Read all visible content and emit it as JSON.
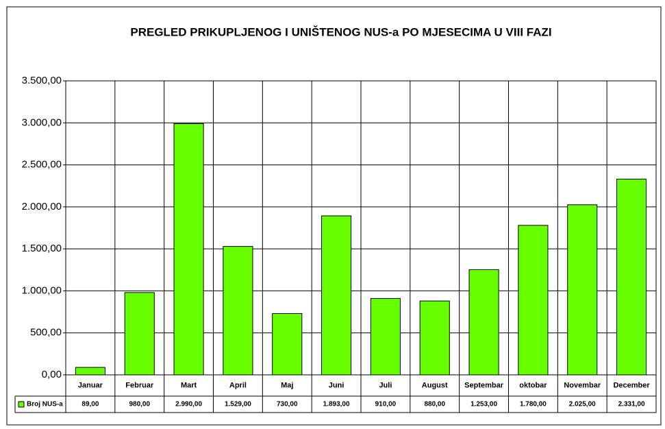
{
  "chart_data": {
    "type": "bar",
    "title": "PREGLED  PRIKUPLJENOG I UNIŠTENOG NUS-a PO MJESECIMA U VIII FAZI",
    "categories": [
      "Januar",
      "Februar",
      "Mart",
      "April",
      "Maj",
      "Juni",
      "Juli",
      "August",
      "Septembar",
      "oktobar",
      "Novembar",
      "December"
    ],
    "series": [
      {
        "name": "Broj NUS-a",
        "color": "#66ff00",
        "values": [
          89,
          980,
          2990,
          1529,
          730,
          1893,
          910,
          880,
          1253,
          1780,
          2025,
          2331
        ],
        "value_labels": [
          "89,00",
          "980,00",
          "2.990,00",
          "1.529,00",
          "730,00",
          "1.893,00",
          "910,00",
          "880,00",
          "1.253,00",
          "1.780,00",
          "2.025,00",
          "2.331,00"
        ]
      }
    ],
    "ylim": [
      0,
      3500
    ],
    "yticks": [
      {
        "value": 0,
        "label": "0,00"
      },
      {
        "value": 500,
        "label": "500,00"
      },
      {
        "value": 1000,
        "label": "1.000,00"
      },
      {
        "value": 1500,
        "label": "1.500,00"
      },
      {
        "value": 2000,
        "label": "2.000,00"
      },
      {
        "value": 2500,
        "label": "2.500,00"
      },
      {
        "value": 3000,
        "label": "3.000,00"
      },
      {
        "value": 3500,
        "label": "3.500,00"
      }
    ],
    "grid": true
  }
}
